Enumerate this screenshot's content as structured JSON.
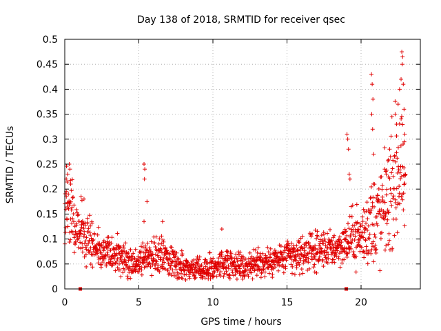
{
  "colors": {
    "series": "#e00000",
    "axis": "#000000",
    "grid": "#a0a0a0",
    "background": "#ffffff"
  },
  "chart_data": {
    "type": "scatter",
    "title": "Day 138 of 2018, SRMTID for receiver qsec",
    "xlabel": "GPS time / hours",
    "ylabel": "SRMTID / TECUs",
    "xlim": [
      0,
      24
    ],
    "ylim": [
      0,
      0.5
    ],
    "x_ticks": [
      0,
      5,
      10,
      15,
      20
    ],
    "x_tick_labels": [
      "0",
      "5",
      "10",
      "15",
      "20"
    ],
    "y_ticks": [
      0,
      0.05,
      0.1,
      0.15,
      0.2,
      0.25,
      0.3,
      0.35,
      0.4,
      0.45,
      0.5
    ],
    "y_tick_labels": [
      "0",
      "0.05",
      "0.1",
      "0.15",
      "0.2",
      "0.25",
      "0.3",
      "0.35",
      "0.4",
      "0.45",
      "0.5"
    ],
    "grid": true,
    "marker": "+",
    "notes": "Dense scatter of ~2000 points; series represented as a time-ordered envelope (mean and spread) plus distinct outlier values read from the plot.",
    "series": [
      {
        "name": "SRMTID",
        "envelope_x": [
          0,
          0.5,
          1,
          1.5,
          2,
          2.5,
          3,
          3.5,
          4,
          4.5,
          5,
          5.5,
          6,
          6.5,
          7,
          7.5,
          8,
          8.5,
          9,
          9.5,
          10,
          10.5,
          11,
          11.5,
          12,
          12.5,
          13,
          13.5,
          14,
          14.5,
          15,
          15.5,
          16,
          16.5,
          17,
          17.5,
          18,
          18.5,
          19,
          19.5,
          20,
          20.5,
          21,
          21.5,
          22,
          22.5,
          23
        ],
        "envelope_mean": [
          0.17,
          0.15,
          0.12,
          0.1,
          0.085,
          0.075,
          0.07,
          0.065,
          0.06,
          0.055,
          0.052,
          0.065,
          0.06,
          0.07,
          0.058,
          0.052,
          0.045,
          0.042,
          0.04,
          0.038,
          0.045,
          0.05,
          0.055,
          0.05,
          0.045,
          0.048,
          0.05,
          0.052,
          0.055,
          0.06,
          0.065,
          0.065,
          0.07,
          0.075,
          0.075,
          0.08,
          0.08,
          0.085,
          0.09,
          0.11,
          0.1,
          0.13,
          0.14,
          0.15,
          0.2,
          0.24,
          0.2
        ],
        "envelope_spread": [
          0.06,
          0.05,
          0.04,
          0.035,
          0.03,
          0.028,
          0.025,
          0.025,
          0.025,
          0.022,
          0.02,
          0.025,
          0.025,
          0.028,
          0.022,
          0.02,
          0.02,
          0.018,
          0.015,
          0.015,
          0.02,
          0.022,
          0.022,
          0.02,
          0.018,
          0.02,
          0.02,
          0.02,
          0.022,
          0.022,
          0.025,
          0.025,
          0.025,
          0.025,
          0.025,
          0.025,
          0.025,
          0.025,
          0.03,
          0.04,
          0.04,
          0.06,
          0.07,
          0.07,
          0.08,
          0.1,
          0.06
        ],
        "outliers": [
          {
            "x": 0.3,
            "y": 0.25
          },
          {
            "x": 0.35,
            "y": 0.24
          },
          {
            "x": 0.2,
            "y": 0.23
          },
          {
            "x": 0.1,
            "y": 0.22
          },
          {
            "x": 0.4,
            "y": 0.21
          },
          {
            "x": 1.1,
            "y": 0.185
          },
          {
            "x": 1.3,
            "y": 0.18
          },
          {
            "x": 5.35,
            "y": 0.25
          },
          {
            "x": 5.4,
            "y": 0.24
          },
          {
            "x": 5.38,
            "y": 0.22
          },
          {
            "x": 5.55,
            "y": 0.175
          },
          {
            "x": 5.35,
            "y": 0.135
          },
          {
            "x": 6.6,
            "y": 0.135
          },
          {
            "x": 10.6,
            "y": 0.12
          },
          {
            "x": 19.05,
            "y": 0.31
          },
          {
            "x": 19.1,
            "y": 0.3
          },
          {
            "x": 19.15,
            "y": 0.28
          },
          {
            "x": 19.2,
            "y": 0.23
          },
          {
            "x": 19.25,
            "y": 0.22
          },
          {
            "x": 20.7,
            "y": 0.43
          },
          {
            "x": 20.75,
            "y": 0.41
          },
          {
            "x": 20.8,
            "y": 0.38
          },
          {
            "x": 20.72,
            "y": 0.35
          },
          {
            "x": 20.78,
            "y": 0.32
          },
          {
            "x": 20.85,
            "y": 0.27
          },
          {
            "x": 21.6,
            "y": 0.24
          },
          {
            "x": 21.7,
            "y": 0.23
          },
          {
            "x": 22.3,
            "y": 0.35
          },
          {
            "x": 22.4,
            "y": 0.33
          },
          {
            "x": 22.5,
            "y": 0.37
          },
          {
            "x": 22.6,
            "y": 0.4
          },
          {
            "x": 22.7,
            "y": 0.42
          },
          {
            "x": 22.75,
            "y": 0.475
          },
          {
            "x": 22.8,
            "y": 0.465
          },
          {
            "x": 22.78,
            "y": 0.45
          },
          {
            "x": 22.85,
            "y": 0.41
          },
          {
            "x": 22.9,
            "y": 0.36
          },
          {
            "x": 22.95,
            "y": 0.31
          }
        ],
        "axis_markers": [
          {
            "x": 1.05,
            "y": 0
          },
          {
            "x": 19.0,
            "y": 0
          }
        ]
      }
    ]
  }
}
